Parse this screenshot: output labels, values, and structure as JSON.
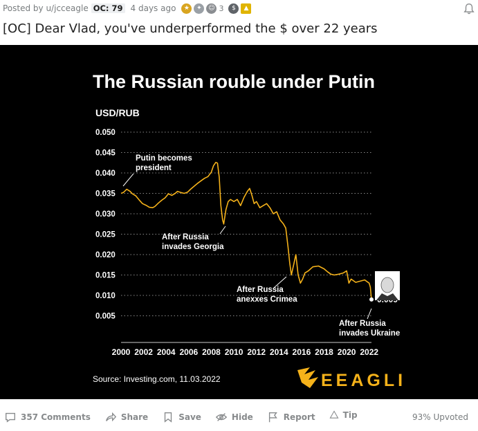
{
  "post": {
    "posted_by": "Posted by u/jcceagle",
    "flair": "OC: 79",
    "age": "4 days ago",
    "award_count": "3",
    "title": "[OC] Dear Vlad, you've underperformed the $ over 22 years"
  },
  "infographic": {
    "headline": "The Russian rouble under Putin",
    "source": "Source: Investing.com, 11.03.2022",
    "brand": "EEAGLI",
    "colors": {
      "background": "#000000",
      "line": "#f5b21a",
      "text": "#ffffff",
      "grid": "#8a8a8a"
    }
  },
  "chart_data": {
    "type": "line",
    "ylabel": "USD/RUB",
    "xlabel": "",
    "ylim": [
      0,
      0.05
    ],
    "xlim": [
      2000,
      2022.2
    ],
    "yticks": [
      "0.005",
      "0.010",
      "0.015",
      "0.020",
      "0.025",
      "0.030",
      "0.035",
      "0.040",
      "0.045",
      "0.050"
    ],
    "xticks": [
      "2000",
      "2002",
      "2004",
      "2006",
      "2008",
      "2010",
      "2012",
      "2014",
      "2016",
      "2018",
      "2020",
      "2022"
    ],
    "grid": "horizontal dotted",
    "series": [
      {
        "x": [
          2000.0,
          2000.2,
          2000.5,
          2000.8,
          2001.0,
          2001.3,
          2001.6,
          2001.9,
          2002.2,
          2002.5,
          2002.8,
          2003.0,
          2003.3,
          2003.6,
          2003.9,
          2004.2,
          2004.5,
          2004.8,
          2005.0,
          2005.3,
          2005.6,
          2005.9,
          2006.2,
          2006.5,
          2006.8,
          2007.1,
          2007.4,
          2007.7,
          2008.0,
          2008.2,
          2008.4,
          2008.55,
          2008.7,
          2008.85,
          2009.0,
          2009.1,
          2009.3,
          2009.5,
          2009.7,
          2010.0,
          2010.3,
          2010.6,
          2010.9,
          2011.2,
          2011.4,
          2011.6,
          2011.8,
          2012.0,
          2012.3,
          2012.6,
          2012.9,
          2013.2,
          2013.5,
          2013.8,
          2014.1,
          2014.4,
          2014.6,
          2014.8,
          2014.95,
          2015.1,
          2015.3,
          2015.5,
          2015.7,
          2015.9,
          2016.1,
          2016.3,
          2016.6,
          2017.0,
          2017.5,
          2018.0,
          2018.3,
          2018.6,
          2018.9,
          2019.3,
          2019.7,
          2020.0,
          2020.2,
          2020.4,
          2020.8,
          2021.2,
          2021.6,
          2022.0,
          2022.1,
          2022.2
        ],
        "values": [
          0.035,
          0.0352,
          0.036,
          0.0355,
          0.0349,
          0.0344,
          0.0334,
          0.0325,
          0.0321,
          0.0316,
          0.0315,
          0.0318,
          0.0326,
          0.0333,
          0.0339,
          0.0349,
          0.0345,
          0.035,
          0.0355,
          0.0352,
          0.035,
          0.0353,
          0.0361,
          0.0368,
          0.0375,
          0.0381,
          0.0387,
          0.0391,
          0.0402,
          0.0418,
          0.0426,
          0.0424,
          0.039,
          0.032,
          0.0285,
          0.0275,
          0.031,
          0.033,
          0.0335,
          0.033,
          0.0335,
          0.032,
          0.034,
          0.0355,
          0.0362,
          0.0345,
          0.0325,
          0.033,
          0.0315,
          0.032,
          0.0325,
          0.0315,
          0.03,
          0.0305,
          0.0285,
          0.0275,
          0.0265,
          0.022,
          0.018,
          0.015,
          0.0175,
          0.02,
          0.015,
          0.013,
          0.014,
          0.0155,
          0.016,
          0.017,
          0.0172,
          0.0165,
          0.0158,
          0.0152,
          0.015,
          0.0152,
          0.0155,
          0.016,
          0.013,
          0.014,
          0.0132,
          0.0135,
          0.0138,
          0.013,
          0.012,
          0.009
        ]
      }
    ],
    "end_label": "0.009",
    "annotations": [
      {
        "text": [
          "Putin becomes",
          "president"
        ],
        "x": 2000.0,
        "y": 0.035
      },
      {
        "text": [
          "After Russia",
          "invades Georgia"
        ],
        "x": 2008.9,
        "y": 0.0275
      },
      {
        "text": [
          "After Russia",
          "anexxes Crimea"
        ],
        "x": 2014.9,
        "y": 0.015
      },
      {
        "text": [
          "After Russia",
          "invades Ukraine"
        ],
        "x": 2022.2,
        "y": 0.009
      }
    ]
  },
  "actions": {
    "comments": "357 Comments",
    "share": "Share",
    "save": "Save",
    "hide": "Hide",
    "report": "Report",
    "tip": "Tip",
    "upvoted": "93% Upvoted"
  }
}
